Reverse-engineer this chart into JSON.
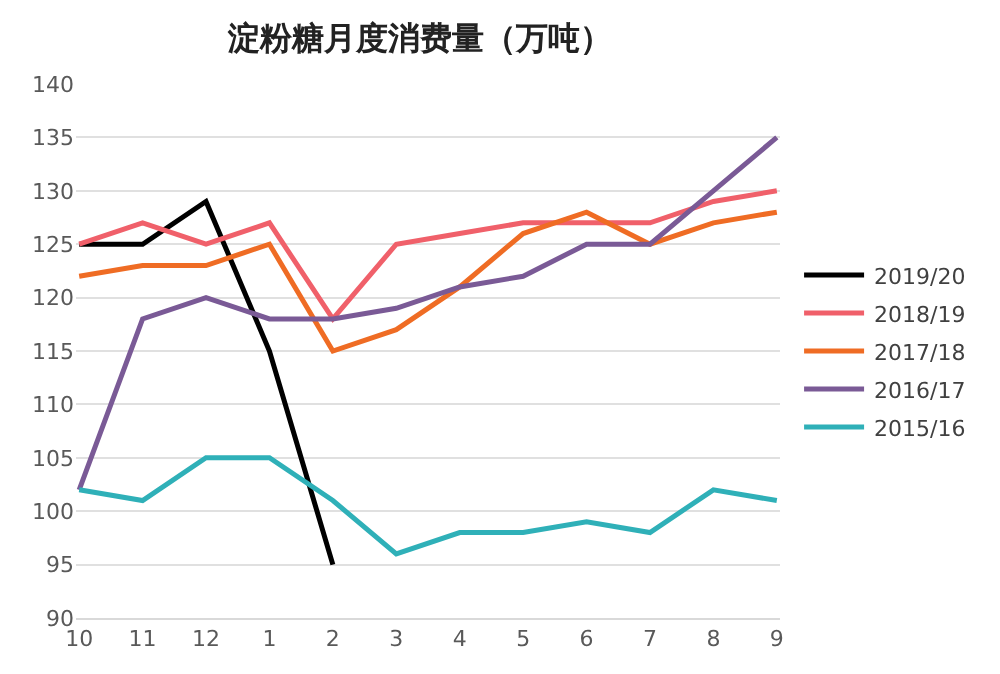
{
  "chart_data": {
    "type": "line",
    "title": "淀粉糖月度消费量（万吨）",
    "categories": [
      "10",
      "11",
      "12",
      "1",
      "2",
      "3",
      "4",
      "5",
      "6",
      "7",
      "8",
      "9"
    ],
    "series": [
      {
        "name": "2019/20",
        "color": "#000000",
        "values": [
          125,
          125,
          129,
          115,
          95,
          null,
          null,
          null,
          null,
          null,
          null,
          null
        ]
      },
      {
        "name": "2018/19",
        "color": "#f0606a",
        "values": [
          125,
          127,
          125,
          127,
          118,
          125,
          126,
          127,
          127,
          127,
          129,
          130
        ]
      },
      {
        "name": "2017/18",
        "color": "#ef6c24",
        "values": [
          122,
          123,
          123,
          125,
          115,
          117,
          121,
          126,
          128,
          125,
          127,
          128
        ]
      },
      {
        "name": "2016/17",
        "color": "#7a5a96",
        "values": [
          102,
          118,
          120,
          118,
          118,
          119,
          121,
          122,
          125,
          125,
          130,
          135
        ]
      },
      {
        "name": "2015/16",
        "color": "#2fb0b8",
        "values": [
          102,
          101,
          105,
          105,
          101,
          96,
          98,
          98,
          99,
          98,
          102,
          101
        ]
      }
    ],
    "ylim": [
      90,
      140
    ],
    "yticks": [
      90,
      95,
      100,
      105,
      110,
      115,
      120,
      125,
      130,
      135,
      140
    ],
    "grid": "y",
    "legend": "right",
    "marker": "none",
    "line_style": "solid"
  }
}
